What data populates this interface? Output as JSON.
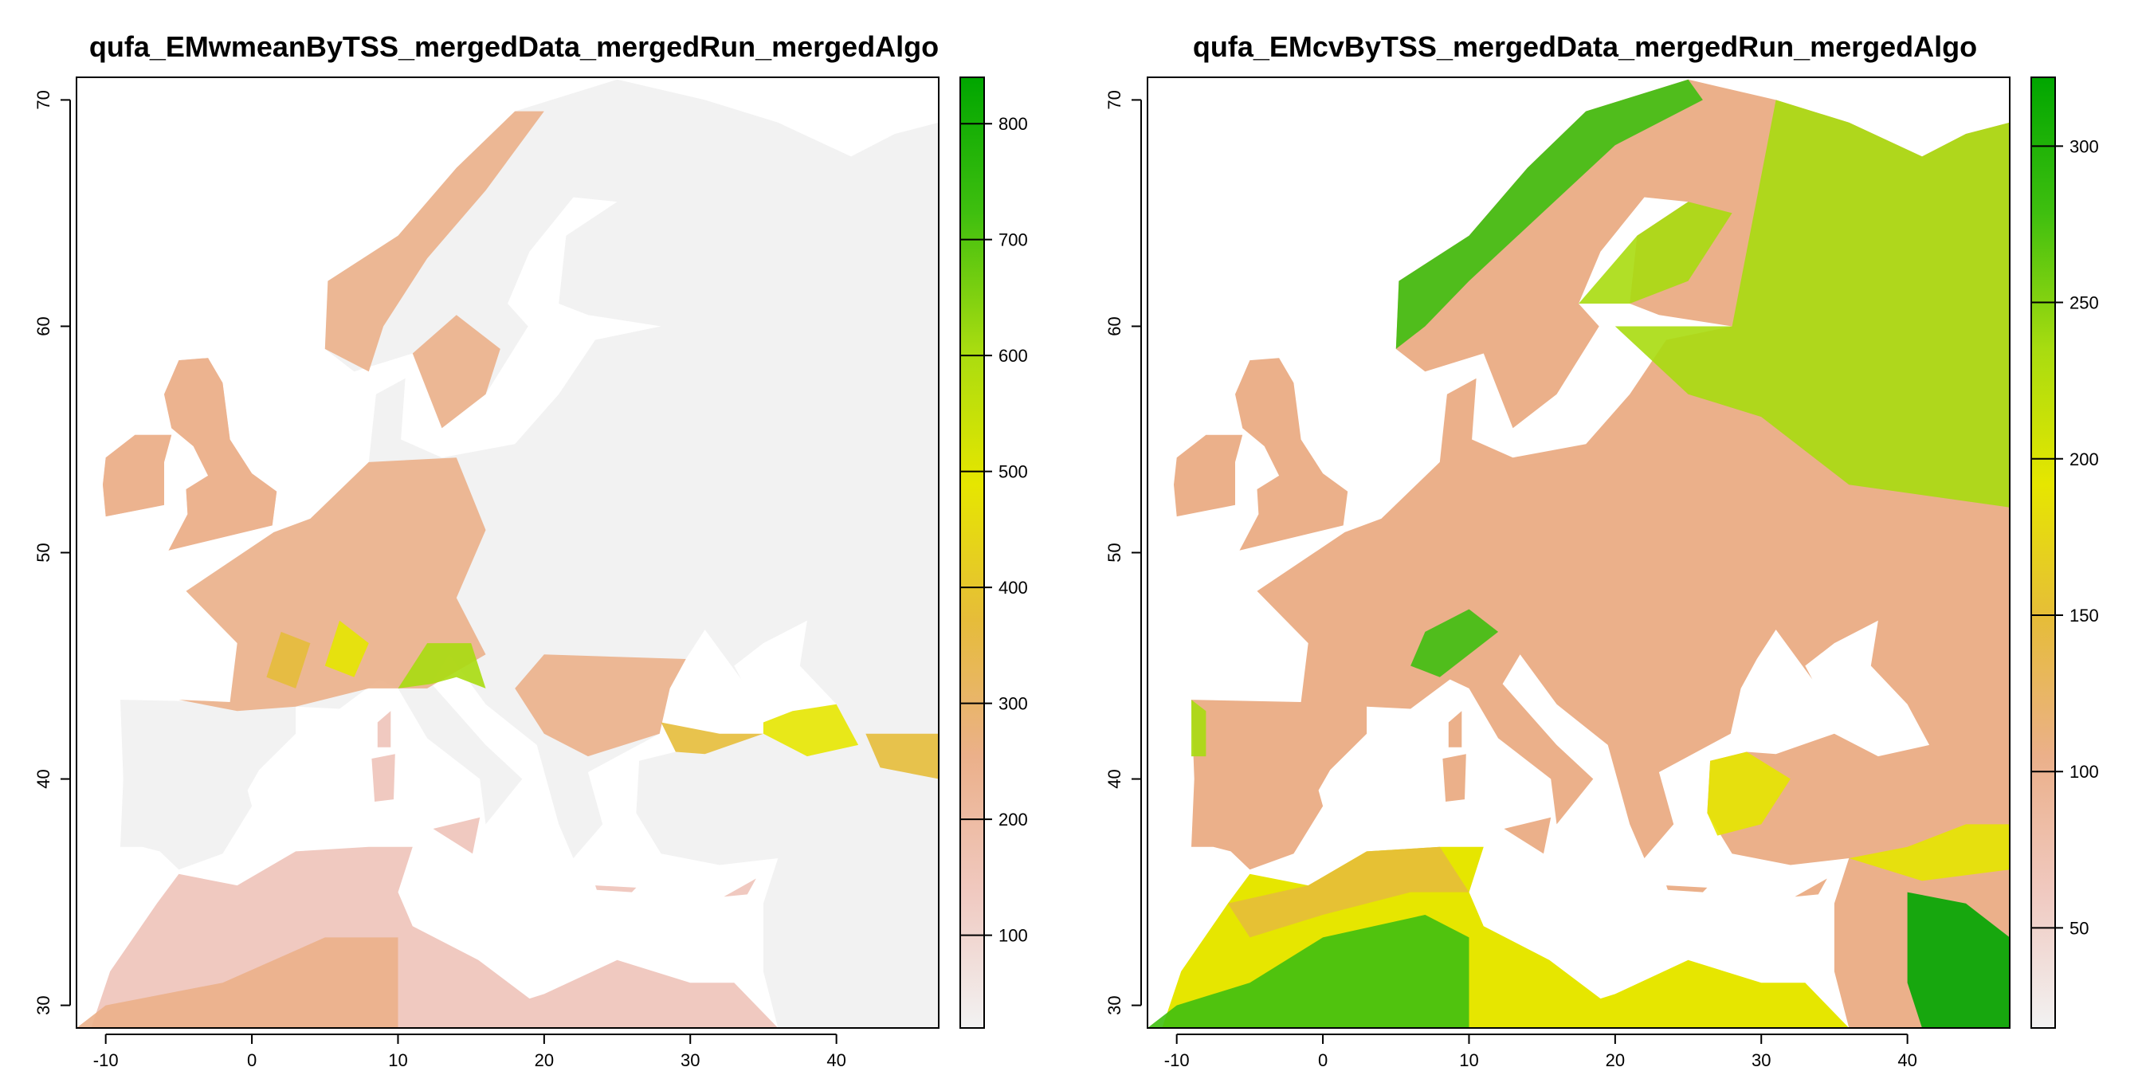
{
  "panels": [
    {
      "title": "qufa_EMwmeanByTSS_mergedData_mergedRun_mergedAlgo",
      "x_ticks": [
        -10,
        0,
        10,
        20,
        30,
        40
      ],
      "y_ticks": [
        30,
        40,
        50,
        60,
        70
      ],
      "xlim": [
        -12,
        47
      ],
      "ylim": [
        29,
        71
      ],
      "legend": {
        "range": [
          20,
          840
        ],
        "ticks": [
          100,
          200,
          300,
          400,
          500,
          600,
          700,
          800
        ],
        "colors": [
          "#f2f2f2",
          "#f0c9c0",
          "#ebb08a",
          "#e6bc3a",
          "#e6e600",
          "#a8dc10",
          "#3fbf0f",
          "#00a600"
        ]
      }
    },
    {
      "title": "qufa_EMcvByTSS_mergedData_mergedRun_mergedAlgo",
      "x_ticks": [
        -10,
        0,
        10,
        20,
        30,
        40
      ],
      "y_ticks": [
        30,
        40,
        50,
        60,
        70
      ],
      "xlim": [
        -12,
        47
      ],
      "ylim": [
        29,
        71
      ],
      "legend": {
        "range": [
          18,
          322
        ],
        "ticks": [
          50,
          100,
          150,
          200,
          250,
          300
        ],
        "colors": [
          "#f2f2f2",
          "#f0c9c0",
          "#ebb08a",
          "#e6bc3a",
          "#e6e600",
          "#a8dc10",
          "#3fbf0f",
          "#00a600"
        ]
      }
    }
  ]
}
